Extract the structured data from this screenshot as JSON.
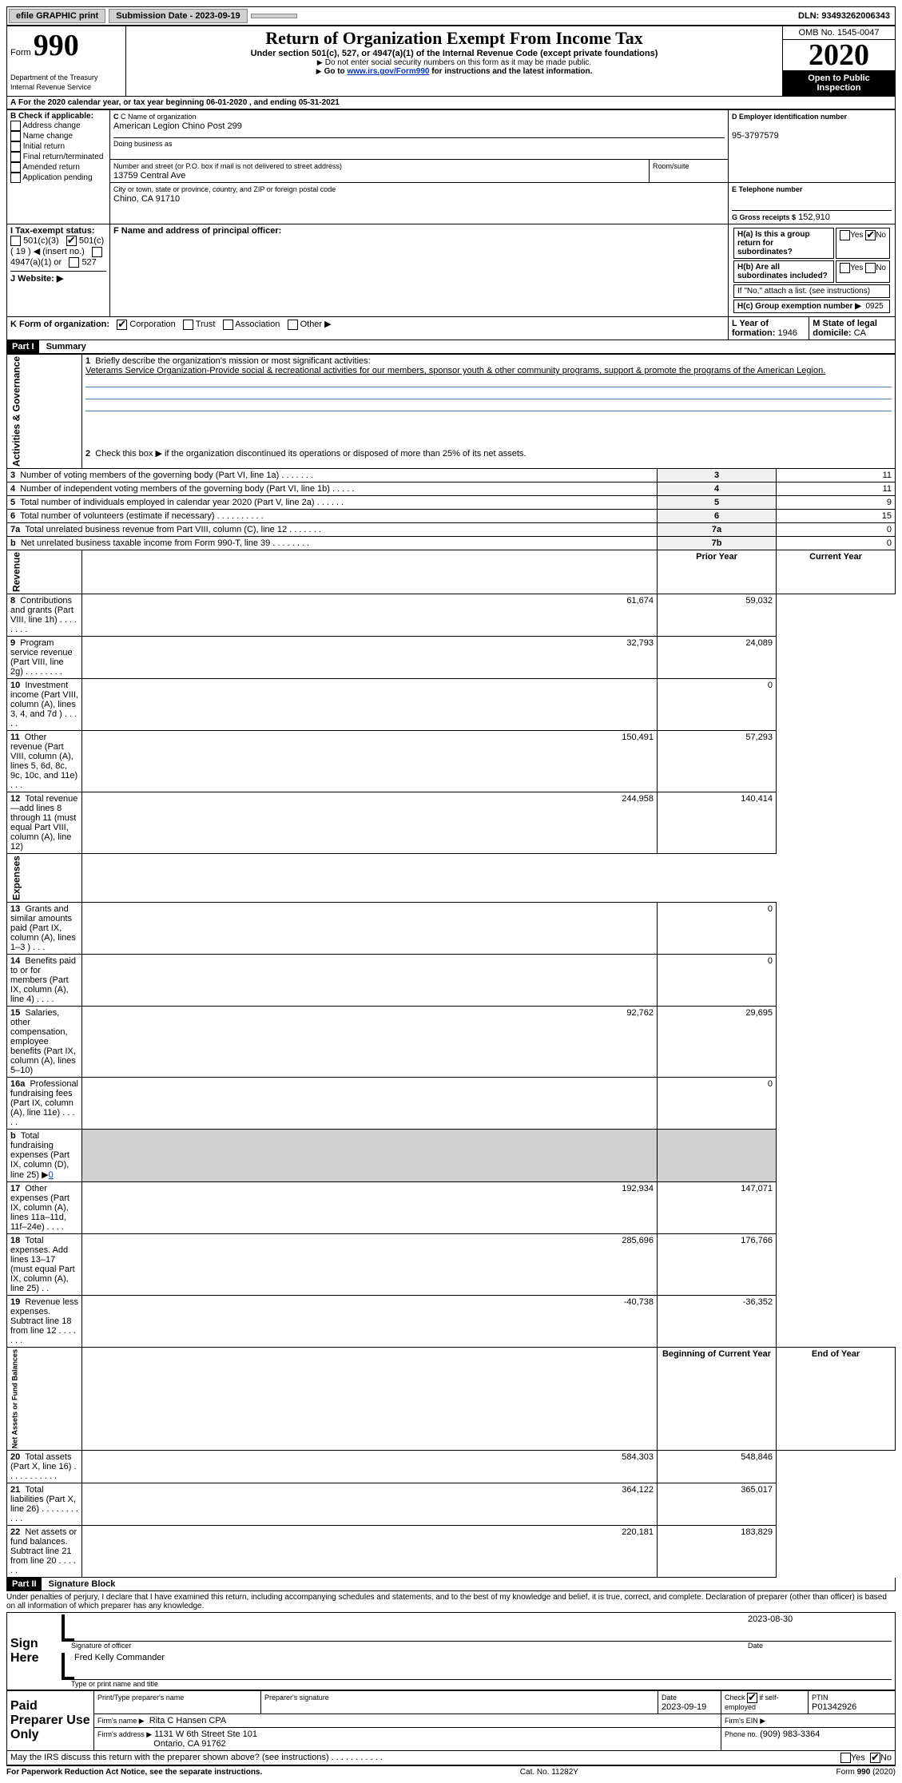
{
  "topbar": {
    "efile": "efile GRAPHIC print",
    "submission": "Submission Date - 2023-09-19",
    "dln": "DLN: 93493262006343"
  },
  "header": {
    "form_label": "Form",
    "form_num": "990",
    "dept": "Department of the Treasury\nInternal Revenue Service",
    "title": "Return of Organization Exempt From Income Tax",
    "subtitle": "Under section 501(c), 527, or 4947(a)(1) of the Internal Revenue Code (except private foundations)",
    "note1": "Do not enter social security numbers on this form as it may be made public.",
    "note2_pre": "Go to ",
    "note2_link": "www.irs.gov/Form990",
    "note2_post": " for instructions and the latest information.",
    "omb": "OMB No. 1545-0047",
    "year": "2020",
    "open": "Open to Public Inspection"
  },
  "period": "For the 2020 calendar year, or tax year beginning 06-01-2020     , and ending 05-31-2021",
  "boxB": {
    "label": "B Check if applicable:",
    "items": [
      "Address change",
      "Name change",
      "Initial return",
      "Final return/terminated",
      "Amended return",
      "Application pending"
    ]
  },
  "boxC": {
    "name_label": "C Name of organization",
    "name": "American Legion Chino Post 299",
    "dba_label": "Doing business as",
    "addr_label": "Number and street (or P.O. box if mail is not delivered to street address)",
    "room_label": "Room/suite",
    "addr": "13759 Central Ave",
    "city_label": "City or town, state or province, country, and ZIP or foreign postal code",
    "city": "Chino, CA  91710"
  },
  "boxD": {
    "label": "D Employer identification number",
    "val": "95-3797579"
  },
  "boxE": {
    "label": "E Telephone number"
  },
  "boxG": {
    "label": "G Gross receipts $",
    "val": "152,910"
  },
  "boxF": "F  Name and address of principal officer:",
  "boxH": {
    "a": "H(a)  Is this a group return for subordinates?",
    "b": "H(b)  Are all subordinates included?",
    "b_note": "If \"No,\" attach a list. (see instructions)",
    "c": "H(c)  Group exemption number ▶",
    "c_val": "0925",
    "yes": "Yes",
    "no": "No"
  },
  "boxI": {
    "label": "I   Tax-exempt status:",
    "opt1": "501(c)(3)",
    "opt2": "501(c) ( 19 ) ◀ (insert no.)",
    "opt3": "4947(a)(1) or",
    "opt4": "527"
  },
  "boxJ": "J   Website: ▶",
  "boxK": {
    "label": "K Form of organization:",
    "corp": "Corporation",
    "trust": "Trust",
    "assoc": "Association",
    "other": "Other ▶"
  },
  "boxL": {
    "label": "L Year of formation:",
    "val": "1946"
  },
  "boxM": {
    "label": "M State of legal domicile:",
    "val": "CA"
  },
  "part1": {
    "hdr": "Part I",
    "title": "Summary",
    "q1": "Briefly describe the organization's mission or most significant activities:",
    "mission": "Veterams Service Organization-Provide social & recreational activities for our members, sponsor youth & other community programs, support & promote the programs of the American Legion.",
    "q2": "Check this box ▶         if the organization discontinued its operations or disposed of more than 25% of its net assets.",
    "rows_gov": [
      {
        "n": "3",
        "t": "Number of voting members of the governing body (Part VI, line 1a)   .     .     .     .     .     .     .",
        "l": "3",
        "v": "11"
      },
      {
        "n": "4",
        "t": "Number of independent voting members of the governing body (Part VI, line 1b)    .     .     .     .     .",
        "l": "4",
        "v": "11"
      },
      {
        "n": "5",
        "t": "Total number of individuals employed in calendar year 2020 (Part V, line 2a)   .     .     .     .     .     .",
        "l": "5",
        "v": "9"
      },
      {
        "n": "6",
        "t": "Total number of volunteers (estimate if necessary)   .     .     .     .     .     .     .     .     .     .",
        "l": "6",
        "v": "15"
      },
      {
        "n": "7a",
        "t": "Total unrelated business revenue from Part VIII, column (C), line 12   .     .     .     .     .     .     .",
        "l": "7a",
        "v": "0"
      },
      {
        "n": "b",
        "t": "Net unrelated business taxable income from Form 990-T, line 39   .     .     .     .     .     .     .     .",
        "l": "7b",
        "v": "0"
      }
    ],
    "col_prior": "Prior Year",
    "col_current": "Current Year",
    "rows_rev": [
      {
        "n": "8",
        "t": "Contributions and grants (Part VIII, line 1h)   .     .     .     .     .     .     .     .",
        "p": "61,674",
        "c": "59,032"
      },
      {
        "n": "9",
        "t": "Program service revenue (Part VIII, line 2g)   .     .     .     .     .     .     .     .",
        "p": "32,793",
        "c": "24,089"
      },
      {
        "n": "10",
        "t": "Investment income (Part VIII, column (A), lines 3, 4, and 7d )   .     .     .     .     .",
        "p": "",
        "c": "0"
      },
      {
        "n": "11",
        "t": "Other revenue (Part VIII, column (A), lines 5, 6d, 8c, 9c, 10c, and 11e)   .     .     .",
        "p": "150,491",
        "c": "57,293"
      },
      {
        "n": "12",
        "t": "Total revenue—add lines 8 through 11 (must equal Part VIII, column (A), line 12)",
        "p": "244,958",
        "c": "140,414"
      }
    ],
    "rows_exp": [
      {
        "n": "13",
        "t": "Grants and similar amounts paid (Part IX, column (A), lines 1–3 )   .     .     .",
        "p": "",
        "c": "0"
      },
      {
        "n": "14",
        "t": "Benefits paid to or for members (Part IX, column (A), line 4)   .     .     .     .",
        "p": "",
        "c": "0"
      },
      {
        "n": "15",
        "t": "Salaries, other compensation, employee benefits (Part IX, column (A), lines 5–10)",
        "p": "92,762",
        "c": "29,695"
      },
      {
        "n": "16a",
        "t": "Professional fundraising fees (Part IX, column (A), line 11e)   .     .     .     .     .",
        "p": "",
        "c": "0"
      },
      {
        "n": "b",
        "t": "Total fundraising expenses (Part IX, column (D), line 25) ▶",
        "p": "grey",
        "c": "grey",
        "link": "0"
      },
      {
        "n": "17",
        "t": "Other expenses (Part IX, column (A), lines 11a–11d, 11f–24e)   .     .     .     .",
        "p": "192,934",
        "c": "147,071"
      },
      {
        "n": "18",
        "t": "Total expenses. Add lines 13–17 (must equal Part IX, column (A), line 25)   .     .",
        "p": "285,696",
        "c": "176,766"
      },
      {
        "n": "19",
        "t": "Revenue less expenses. Subtract line 18 from line 12   .     .     .     .     .     .     .",
        "p": "-40,738",
        "c": "-36,352"
      }
    ],
    "col_begin": "Beginning of Current Year",
    "col_end": "End of Year",
    "rows_net": [
      {
        "n": "20",
        "t": "Total assets (Part X, line 16)   .     .     .     .     .     .     .     .     .     .     .",
        "p": "584,303",
        "c": "548,846"
      },
      {
        "n": "21",
        "t": "Total liabilities (Part X, line 26)   .     .     .     .     .     .     .     .     .     .     .",
        "p": "364,122",
        "c": "365,017"
      },
      {
        "n": "22",
        "t": "Net assets or fund balances. Subtract line 21 from line 20   .     .     .     .     .     .",
        "p": "220,181",
        "c": "183,829"
      }
    ],
    "side_gov": "Activities & Governance",
    "side_rev": "Revenue",
    "side_exp": "Expenses",
    "side_net": "Net Assets or Fund Balances"
  },
  "part2": {
    "hdr": "Part II",
    "title": "Signature Block",
    "decl": "Under penalties of perjury, I declare that I have examined this return, including accompanying schedules and statements, and to the best of my knowledge and belief, it is true, correct, and complete. Declaration of preparer (other than officer) is based on all information of which preparer has any knowledge.",
    "sign_here": "Sign Here",
    "sig_label": "Signature of officer",
    "sig_date": "2023-08-30",
    "date_label": "Date",
    "officer": "Fred Kelly  Commander",
    "officer_label": "Type or print name and title",
    "paid": "Paid Preparer Use Only",
    "prep_name_label": "Print/Type preparer's name",
    "prep_sig_label": "Preparer's signature",
    "prep_date_label": "Date",
    "prep_date": "2023-09-19",
    "self_emp": "Check          if self-employed",
    "ptin_label": "PTIN",
    "ptin": "P01342926",
    "firm_name_label": "Firm's name      ▶",
    "firm_name": "Rita C Hansen CPA",
    "firm_ein_label": "Firm's EIN ▶",
    "firm_addr_label": "Firm's address ▶",
    "firm_addr1": "1131 W 6th Street Ste 101",
    "firm_addr2": "Ontario, CA  91762",
    "phone_label": "Phone no.",
    "phone": "(909) 983-3364",
    "discuss": "May the IRS discuss this return with the preparer shown above? (see instructions)   .     .     .     .     .     .     .     .     .     .     .",
    "yes": "Yes",
    "no": "No"
  },
  "footer": {
    "left": "For Paperwork Reduction Act Notice, see the separate instructions.",
    "mid": "Cat. No. 11282Y",
    "right": "Form 990 (2020)"
  }
}
